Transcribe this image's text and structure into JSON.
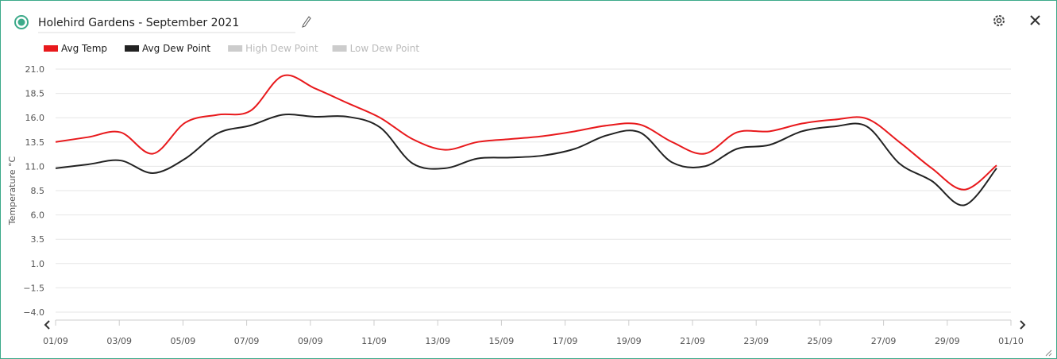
{
  "chart_data": {
    "type": "line",
    "title": "Holehird Gardens - September 2021",
    "y_label": "Temperature °C",
    "x": [
      "01/09",
      "02/09",
      "03/09",
      "04/09",
      "05/09",
      "06/09",
      "07/09",
      "08/09",
      "09/09",
      "10/09",
      "11/09",
      "12/09",
      "13/09",
      "14/09",
      "15/09",
      "16/09",
      "17/09",
      "18/09",
      "19/09",
      "20/09",
      "21/09",
      "22/09",
      "23/09",
      "24/09",
      "25/09",
      "26/09",
      "27/09",
      "28/09",
      "29/09",
      "30/09"
    ],
    "xticks": [
      "01/09",
      "03/09",
      "05/09",
      "07/09",
      "09/09",
      "11/09",
      "13/09",
      "15/09",
      "17/09",
      "19/09",
      "21/09",
      "23/09",
      "25/09",
      "27/09",
      "29/09",
      "01/10"
    ],
    "series": [
      {
        "name": "Avg Temp",
        "color": "#e8191c",
        "values": [
          13.5,
          14.0,
          14.5,
          12.3,
          15.5,
          16.3,
          16.7,
          20.3,
          19.0,
          17.5,
          16.0,
          13.8,
          12.7,
          13.5,
          13.8,
          14.1,
          14.6,
          15.2,
          15.3,
          13.5,
          12.3,
          14.5,
          14.6,
          15.4,
          15.8,
          15.9,
          13.5,
          10.8,
          8.6,
          11.1
        ]
      },
      {
        "name": "Avg Dew Point",
        "color": "#222222",
        "values": [
          10.8,
          11.2,
          11.6,
          10.3,
          11.8,
          14.4,
          15.2,
          16.3,
          16.1,
          16.1,
          15.0,
          11.3,
          10.8,
          11.8,
          11.9,
          12.1,
          12.8,
          14.2,
          14.5,
          11.4,
          11.0,
          12.8,
          13.2,
          14.6,
          15.1,
          15.1,
          11.3,
          9.5,
          7.0,
          10.8
        ]
      }
    ],
    "inactive_legend": [
      "High Dew Point",
      "Low Dew Point"
    ],
    "ylim": [
      -4,
      21
    ],
    "yticks": [
      {
        "value": 21,
        "label": "21.0"
      },
      {
        "value": 18.5,
        "label": "18.5"
      },
      {
        "value": 16,
        "label": "16.0"
      },
      {
        "value": 13.5,
        "label": "13.5"
      },
      {
        "value": 11,
        "label": "11.0"
      },
      {
        "value": 8.5,
        "label": "8.5"
      },
      {
        "value": 6,
        "label": "6.0"
      },
      {
        "value": 3.5,
        "label": "3.5"
      },
      {
        "value": 1,
        "label": "1.0"
      },
      {
        "value": -1.5,
        "label": "−1.5"
      },
      {
        "value": -4,
        "label": "−4.0"
      }
    ],
    "grid": true
  }
}
